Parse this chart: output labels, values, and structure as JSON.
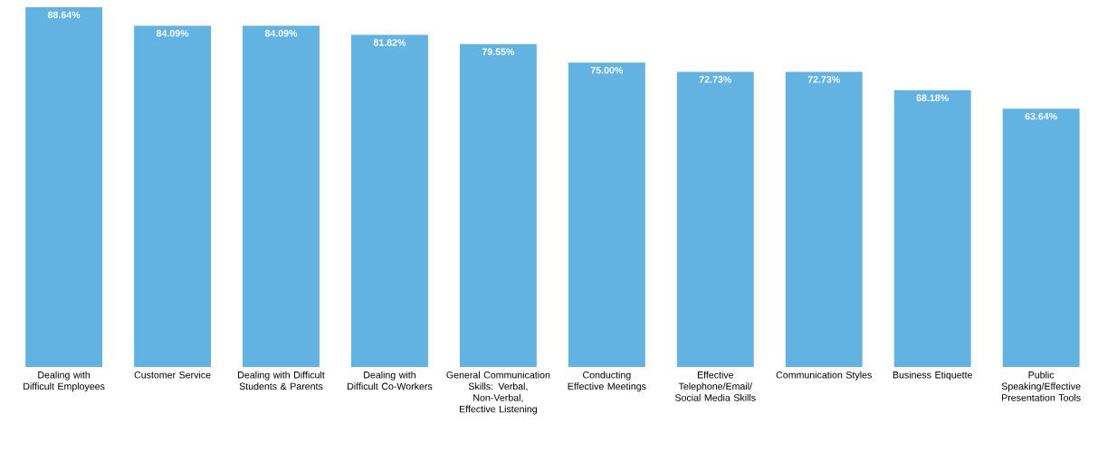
{
  "chart_data": {
    "type": "bar",
    "categories": [
      "Dealing with Difficult Employees",
      "Customer Service",
      "Dealing with Difficult Students & Parents",
      "Dealing with Difficult Co-Workers",
      "General Communication Skills: Verbal, Non-Verbal, Effective Listening",
      "Conducting Effective Meetings",
      "Effective Telephone/Email/ Social Media Skills",
      "Communication Styles",
      "Business Etiquette",
      "Public Speaking/Effective Presentation Tools"
    ],
    "values": [
      88.64,
      84.09,
      84.09,
      81.82,
      79.55,
      75.0,
      72.73,
      72.73,
      68.18,
      63.64
    ],
    "value_labels": [
      "88.64%",
      "84.09%",
      "84.09%",
      "81.82%",
      "79.55%",
      "75.00%",
      "72.73%",
      "72.73%",
      "68.18%",
      "63.64%"
    ],
    "color": "#62b3e2"
  }
}
